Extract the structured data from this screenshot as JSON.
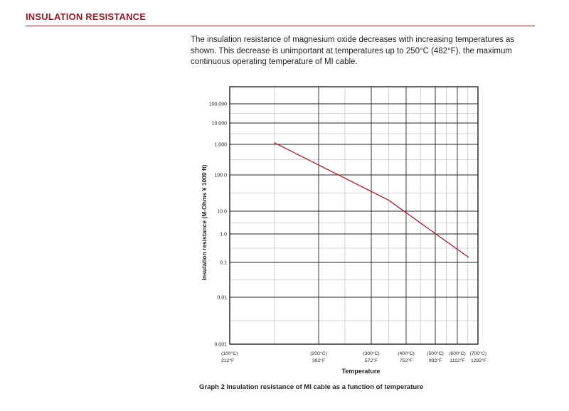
{
  "section": {
    "title": "INSULATION RESISTANCE",
    "intro": "The insulation resistance of magnesium oxide decreases with increasing temperatures as shown. This decrease is unimportant at temperatures up to 250°C (482°F), the maximum continuous operating temperature of MI cable."
  },
  "caption": "Graph 2  Insulation resistance of MI cable as a function of temperature",
  "colors": {
    "accent": "#8e1c28",
    "line": "#a11a2c",
    "grid_major": "#222222",
    "grid_minor": "#c8c8c8"
  },
  "chart_data": {
    "type": "line",
    "title": "",
    "xlabel": "Temperature",
    "ylabel": "Insulation resistance (M-Ohms ¥ 1000 ft)",
    "y_scale": "log",
    "ylim": [
      0.001,
      100000
    ],
    "xlim": [
      100,
      700
    ],
    "grid": true,
    "y_ticks": [
      {
        "value": 100000,
        "label": "100,000"
      },
      {
        "value": 10000,
        "label": "10,000"
      },
      {
        "value": 1000,
        "label": "1,000"
      },
      {
        "value": 100,
        "label": "100.0"
      },
      {
        "value": 10,
        "label": "10.0"
      },
      {
        "value": 1,
        "label": "1.0"
      },
      {
        "value": 0.1,
        "label": "0.1"
      },
      {
        "value": 0.01,
        "label": "0.01"
      },
      {
        "value": 0.001,
        "label": "0.001"
      }
    ],
    "x_ticks": [
      {
        "value": 100,
        "c": "(100°C)",
        "f": "212°F"
      },
      {
        "value": 200,
        "c": "(200°C)",
        "f": "392°F"
      },
      {
        "value": 300,
        "c": "(300°C)",
        "f": "572°F"
      },
      {
        "value": 400,
        "c": "(400°C)",
        "f": "752°F"
      },
      {
        "value": 500,
        "c": "(500°C)",
        "f": "932°F"
      },
      {
        "value": 600,
        "c": "(600°C)",
        "f": "1112°F"
      },
      {
        "value": 700,
        "c": "(700°C)",
        "f": "1292°F"
      }
    ],
    "series": [
      {
        "points": [
          [
            150,
            1200
          ],
          [
            350,
            20
          ],
          [
            520,
            0.8
          ],
          [
            655,
            0.15
          ]
        ]
      }
    ]
  }
}
